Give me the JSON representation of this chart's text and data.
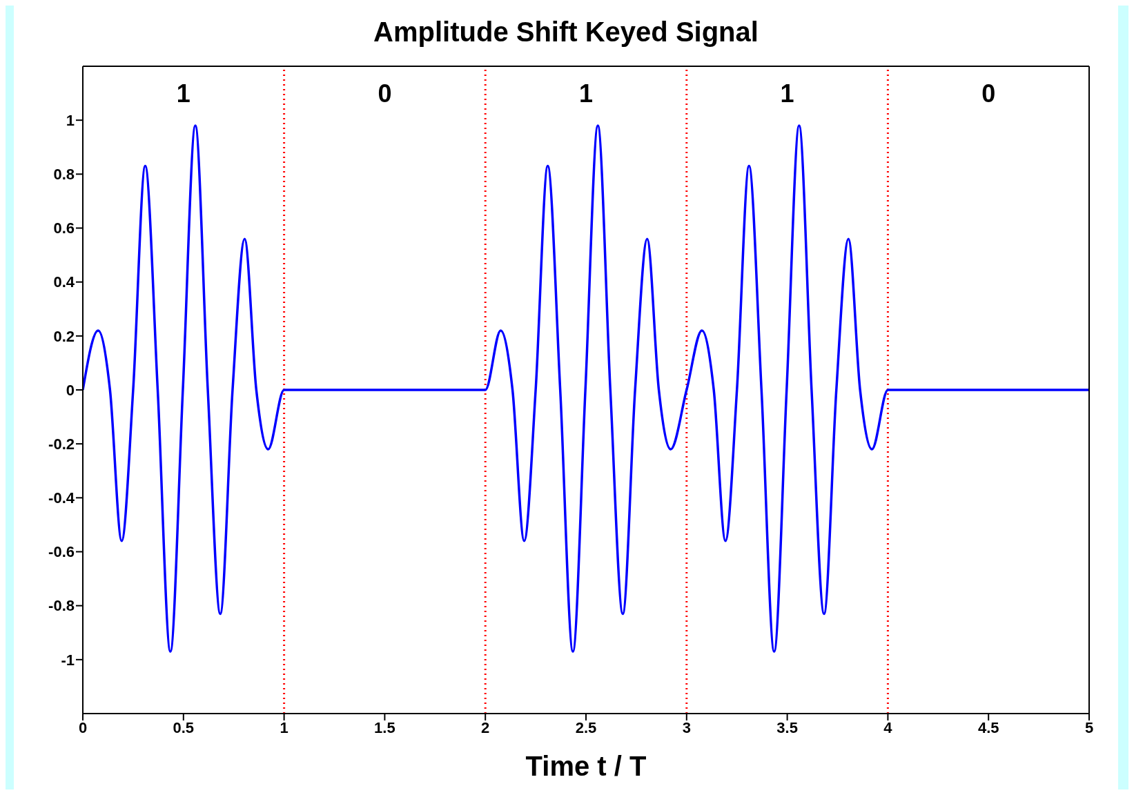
{
  "chart_data": {
    "type": "line",
    "title": "Amplitude Shift Keyed Signal",
    "xlabel": "Time t / T",
    "x": [
      0,
      0.076,
      0.135,
      0.193,
      0.25,
      0.31,
      0.372,
      0.435,
      0.497,
      0.559,
      0.621,
      0.683,
      0.744,
      0.804,
      0.862,
      0.921,
      1,
      2,
      2.076,
      2.135,
      2.193,
      2.25,
      2.31,
      2.372,
      2.435,
      2.497,
      2.559,
      2.621,
      2.683,
      2.744,
      2.804,
      2.862,
      2.921,
      3,
      3.076,
      3.135,
      3.193,
      3.25,
      3.31,
      3.372,
      3.435,
      3.497,
      3.559,
      3.621,
      3.683,
      3.744,
      3.804,
      3.862,
      3.921,
      4,
      5
    ],
    "series": [
      {
        "color": "#0000ff",
        "values": [
          0,
          0.22,
          0,
          -0.56,
          0,
          0.83,
          0,
          -0.97,
          0,
          0.98,
          0,
          -0.83,
          0,
          0.56,
          0,
          -0.22,
          0,
          0,
          0.22,
          0,
          -0.56,
          0,
          0.83,
          0,
          -0.97,
          0,
          0.98,
          0,
          -0.83,
          0,
          0.56,
          0,
          -0.22,
          0,
          0.22,
          0,
          -0.56,
          0,
          0.83,
          0,
          -0.97,
          0,
          0.98,
          0,
          -0.83,
          0,
          0.56,
          0,
          -0.22,
          0,
          0
        ]
      }
    ],
    "xlim": [
      0,
      5
    ],
    "xticks": [
      0,
      0.5,
      1,
      1.5,
      2,
      2.5,
      3,
      3.5,
      4,
      4.5,
      5
    ],
    "ylim": [
      -1.2,
      1.2
    ],
    "yticks": [
      -1,
      -0.8,
      -0.6,
      -0.4,
      -0.2,
      0,
      0.2,
      0.4,
      0.6,
      0.8,
      1
    ],
    "grid": false,
    "legend": false,
    "marker": "none",
    "line_style": "solid",
    "ref_lines": [
      {
        "axis": "x",
        "value": 1,
        "color": "#ff0000",
        "line_style": "dotted"
      },
      {
        "axis": "x",
        "value": 2,
        "color": "#ff0000",
        "line_style": "dotted"
      },
      {
        "axis": "x",
        "value": 3,
        "color": "#ff0000",
        "line_style": "dotted"
      },
      {
        "axis": "x",
        "value": 4,
        "color": "#ff0000",
        "line_style": "dotted"
      }
    ],
    "annotations": [
      "1",
      "0",
      "1",
      "1",
      "0"
    ]
  }
}
